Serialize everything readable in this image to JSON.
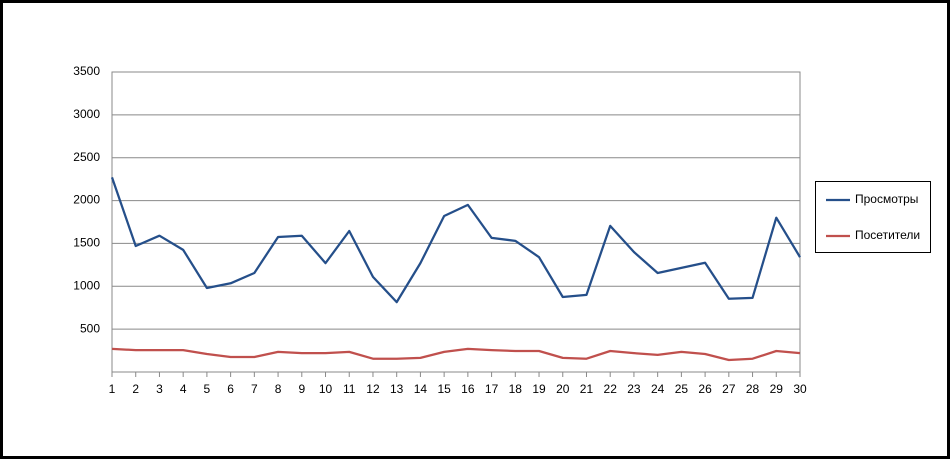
{
  "chart_data": {
    "type": "line",
    "x": [
      1,
      2,
      3,
      4,
      5,
      6,
      7,
      8,
      9,
      10,
      11,
      12,
      13,
      14,
      15,
      16,
      17,
      18,
      19,
      20,
      21,
      22,
      23,
      24,
      25,
      26,
      27,
      28,
      29,
      30
    ],
    "xlim": [
      1,
      30
    ],
    "xticks": [
      1,
      2,
      3,
      4,
      5,
      6,
      7,
      8,
      9,
      10,
      11,
      12,
      13,
      14,
      15,
      16,
      17,
      18,
      19,
      20,
      21,
      22,
      23,
      24,
      25,
      26,
      27,
      28,
      29,
      30
    ],
    "ylim": [
      0,
      3500
    ],
    "yticks": [
      500,
      1000,
      1500,
      2000,
      2500,
      3000,
      3500
    ],
    "grid": true,
    "legend": "right",
    "series": [
      {
        "name": "Просмотры",
        "color": "#254f8a",
        "values": [
          2270,
          1470,
          1590,
          1425,
          980,
          1035,
          1155,
          1575,
          1590,
          1270,
          1645,
          1110,
          815,
          1270,
          1820,
          1950,
          1565,
          1530,
          1340,
          875,
          900,
          1705,
          1400,
          1155,
          1215,
          1275,
          855,
          865,
          1800,
          1340
        ]
      },
      {
        "name": "Посетители",
        "color": "#c0504d",
        "values": [
          270,
          255,
          255,
          255,
          210,
          175,
          175,
          235,
          220,
          220,
          235,
          155,
          155,
          165,
          235,
          270,
          255,
          245,
          245,
          165,
          155,
          245,
          220,
          200,
          235,
          210,
          140,
          155,
          245,
          220
        ]
      }
    ]
  }
}
